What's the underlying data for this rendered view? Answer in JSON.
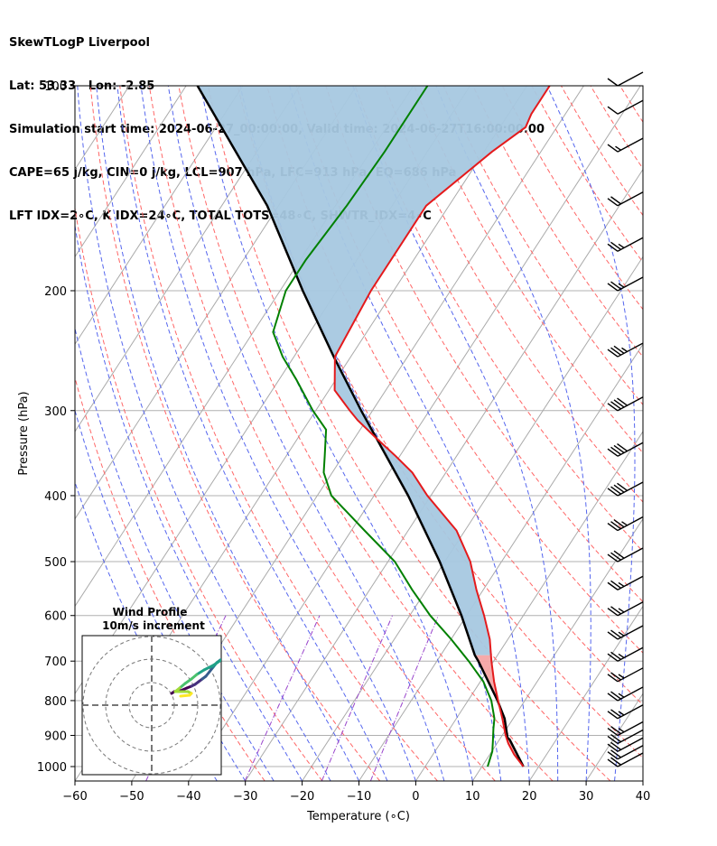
{
  "header": {
    "line1": "SkewTLogP Liverpool",
    "line2": "Lat: 53.33   Lon: -2.85",
    "line3": "Simulation start time: 2024-06-27_00:00:00, Valid time: 2024-06-27T16:00:00.00",
    "line4": "CAPE=65 j/kg, CIN=0 j/kg, LCL=907 hPa, LFC=913 hPa, EQ=686 hPa",
    "line5": "LFT IDX=2∘C, K IDX=24∘C, TOTAL TOTS=48∘C, SHWTR_IDX=4∘C"
  },
  "colors": {
    "temperature": "#e41a1c",
    "dewpoint": "#008000",
    "parcel": "#000000",
    "cape_fill": "#a6c8e0",
    "cin_fill": "#f4a5a5",
    "isotherm": "#aaaaaa",
    "dry_adiabat": "#ff6666",
    "moist_adiabat": "#5566ee",
    "mixing_ratio": "#9944cc"
  },
  "chart_data": {
    "type": "skewt",
    "xlabel": "Temperature (∘C)",
    "ylabel": "Pressure (hPa)",
    "xlim": [
      -60,
      40
    ],
    "ylim": [
      1050,
      100
    ],
    "x_ticks": [
      "−60",
      "−50",
      "−40",
      "−30",
      "−20",
      "−10",
      "0",
      "10",
      "20",
      "30",
      "40"
    ],
    "x_tick_values": [
      -60,
      -50,
      -40,
      -30,
      -20,
      -10,
      0,
      10,
      20,
      30,
      40
    ],
    "p_ticks": [
      "1000",
      "900",
      "800",
      "700",
      "600",
      "500",
      "400",
      "300",
      "200",
      "100"
    ],
    "p_tick_values": [
      1000,
      900,
      800,
      700,
      600,
      500,
      400,
      300,
      200,
      100
    ],
    "temperature_profile": {
      "pressure": [
        1000,
        960,
        925,
        900,
        850,
        800,
        750,
        700,
        650,
        600,
        550,
        500,
        450,
        400,
        370,
        350,
        330,
        310,
        300,
        280,
        250,
        200,
        150,
        125,
        115,
        110,
        100
      ],
      "values": [
        17.3,
        14.3,
        12.0,
        10.6,
        8.1,
        5.3,
        2.4,
        -0.4,
        -3.2,
        -6.9,
        -11.2,
        -15.5,
        -21.5,
        -30.6,
        -35.9,
        -40.7,
        -46.0,
        -51.5,
        -54.0,
        -59.0,
        -62.8,
        -64.0,
        -64.0,
        -58.6,
        -55.5,
        -56.0,
        -56.0
      ]
    },
    "dewpoint_profile": {
      "pressure": [
        1000,
        950,
        920,
        880,
        850,
        800,
        750,
        700,
        650,
        600,
        550,
        500,
        450,
        400,
        370,
        350,
        320,
        300,
        270,
        250,
        230,
        200,
        180,
        150,
        125,
        100
      ],
      "values": [
        11.0,
        10.1,
        9.1,
        7.7,
        6.7,
        4.1,
        0.5,
        -4.4,
        -10.0,
        -16.4,
        -22.5,
        -28.8,
        -37.7,
        -47.5,
        -51.5,
        -53.2,
        -56.0,
        -60.5,
        -67.0,
        -72.0,
        -76.5,
        -79.0,
        -79.0,
        -78.0,
        -77.5,
        -77.5
      ]
    },
    "parcel_profile": {
      "pressure": [
        1000,
        913,
        907,
        850,
        800,
        700,
        686,
        600,
        500,
        400,
        300,
        250,
        200,
        150,
        100
      ],
      "values": [
        17.3,
        11.8,
        11.2,
        8.5,
        5.2,
        -2.7,
        -4.0,
        -10.9,
        -20.9,
        -34.0,
        -52.0,
        -63.0,
        -76.0,
        -92.0,
        -118.0
      ]
    },
    "wind_barbs": {
      "pressure": [
        1000,
        975,
        950,
        925,
        900,
        850,
        800,
        750,
        700,
        650,
        600,
        550,
        500,
        450,
        400,
        350,
        300,
        250,
        200,
        175,
        150,
        125,
        110,
        100
      ],
      "speed_kt": [
        20,
        20,
        20,
        20,
        25,
        25,
        25,
        25,
        25,
        25,
        25,
        25,
        30,
        35,
        40,
        40,
        40,
        35,
        25,
        25,
        20,
        15,
        10,
        10
      ]
    },
    "inset": {
      "title": "Wind Profile",
      "subtitle": "10m/s increment"
    }
  }
}
